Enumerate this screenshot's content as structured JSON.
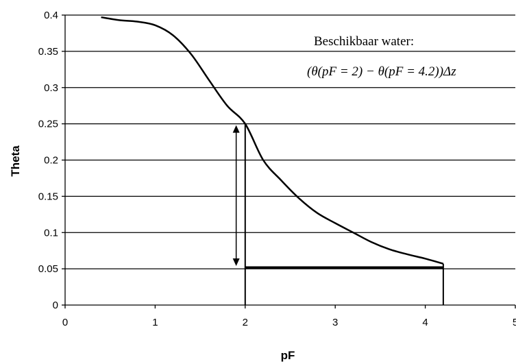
{
  "chart_data": {
    "type": "line",
    "xlabel": "pF",
    "ylabel": "Theta",
    "xlim": [
      0,
      5
    ],
    "ylim": [
      0,
      0.4
    ],
    "xticks": [
      "0",
      "1",
      "2",
      "3",
      "4",
      "5"
    ],
    "yticks": [
      "0",
      "0.05",
      "0.1",
      "0.15",
      "0.2",
      "0.25",
      "0.3",
      "0.35",
      "0.4"
    ],
    "grid": "horizontal",
    "series": [
      {
        "x": [
          0.4,
          0.6,
          0.8,
          1.0,
          1.2,
          1.4,
          1.6,
          1.8,
          2.0,
          2.2,
          2.4,
          2.6,
          2.8,
          3.0,
          3.2,
          3.4,
          3.6,
          3.8,
          4.0,
          4.2
        ],
        "y": [
          0.397,
          0.393,
          0.391,
          0.386,
          0.372,
          0.346,
          0.31,
          0.275,
          0.25,
          0.2,
          0.172,
          0.147,
          0.127,
          0.113,
          0.1,
          0.087,
          0.077,
          0.07,
          0.064,
          0.057
        ]
      }
    ],
    "annotations": {
      "line1": "Beschikbaar water:",
      "formula": "(θ(pF = 2) − θ(pF = 4.2))Δz"
    },
    "markers": {
      "vertical_lines_at_x": [
        2,
        4.2
      ],
      "horizontal_segment_y": 0.052,
      "horizontal_segment_x": [
        2,
        4.2
      ],
      "double_arrow_x": 1.9,
      "double_arrow_y": [
        0.052,
        0.25
      ]
    }
  }
}
